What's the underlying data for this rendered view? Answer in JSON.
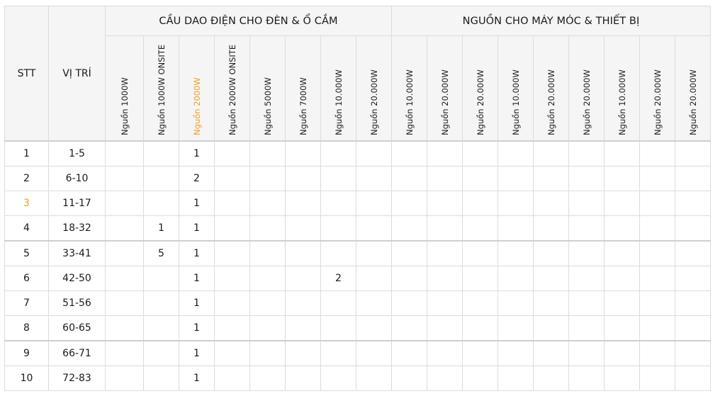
{
  "headers": {
    "stt": "STT",
    "vi_tri": "VỊ TRÍ",
    "group_1": "CẦU DAO ĐIỆN CHO ĐÈN & Ổ CẮM",
    "group_2": "NGUỒN CHO MÁY MÓC & THIẾT BỊ",
    "columns": [
      "Nguồn 1000W",
      "Nguồn 1000W ONSITE",
      "Nguồn 2000W",
      "Nguồn 2000W ONSITE",
      "Nguồn 5000W",
      "Nguồn 7000W",
      "Nguồn 10.000W",
      "Nguồn 20.000W",
      "Nguồn 10.000W",
      "Nguồn 20.000W",
      "Nguồn 20.000W",
      "Nguồn 10.000W",
      "Nguồn 20.000W",
      "Nguồn 20.000W",
      "Nguồn 10.000W",
      "Nguồn 20.000W",
      "Nguồn 20.000W"
    ]
  },
  "highlight_color": "#f0a020",
  "rows": [
    {
      "stt": "1",
      "vi_tri": "1-5",
      "cells": [
        "",
        "",
        "1",
        "",
        "",
        "",
        "",
        "",
        "",
        "",
        "",
        "",
        "",
        "",
        "",
        "",
        ""
      ]
    },
    {
      "stt": "2",
      "vi_tri": "6-10",
      "cells": [
        "",
        "",
        "2",
        "",
        "",
        "",
        "",
        "",
        "",
        "",
        "",
        "",
        "",
        "",
        "",
        "",
        ""
      ]
    },
    {
      "stt": "3",
      "vi_tri": "11-17",
      "cells": [
        "",
        "",
        "1",
        "",
        "",
        "",
        "",
        "",
        "",
        "",
        "",
        "",
        "",
        "",
        "",
        "",
        ""
      ]
    },
    {
      "stt": "4",
      "vi_tri": "18-32",
      "cells": [
        "",
        "1",
        "1",
        "",
        "",
        "",
        "",
        "",
        "",
        "",
        "",
        "",
        "",
        "",
        "",
        "",
        ""
      ]
    },
    {
      "stt": "5",
      "vi_tri": "33-41",
      "cells": [
        "",
        "5",
        "1",
        "",
        "",
        "",
        "",
        "",
        "",
        "",
        "",
        "",
        "",
        "",
        "",
        "",
        ""
      ]
    },
    {
      "stt": "6",
      "vi_tri": "42-50",
      "cells": [
        "",
        "",
        "1",
        "",
        "",
        "",
        "2",
        "",
        "",
        "",
        "",
        "",
        "",
        "",
        "",
        "",
        ""
      ]
    },
    {
      "stt": "7",
      "vi_tri": "51-56",
      "cells": [
        "",
        "",
        "1",
        "",
        "",
        "",
        "",
        "",
        "",
        "",
        "",
        "",
        "",
        "",
        "",
        "",
        ""
      ]
    },
    {
      "stt": "8",
      "vi_tri": "60-65",
      "cells": [
        "",
        "",
        "1",
        "",
        "",
        "",
        "",
        "",
        "",
        "",
        "",
        "",
        "",
        "",
        "",
        "",
        ""
      ]
    },
    {
      "stt": "9",
      "vi_tri": "66-71",
      "cells": [
        "",
        "",
        "1",
        "",
        "",
        "",
        "",
        "",
        "",
        "",
        "",
        "",
        "",
        "",
        "",
        "",
        ""
      ]
    },
    {
      "stt": "10",
      "vi_tri": "72-83",
      "cells": [
        "",
        "",
        "1",
        "",
        "",
        "",
        "",
        "",
        "",
        "",
        "",
        "",
        "",
        "",
        "",
        "",
        ""
      ]
    }
  ]
}
